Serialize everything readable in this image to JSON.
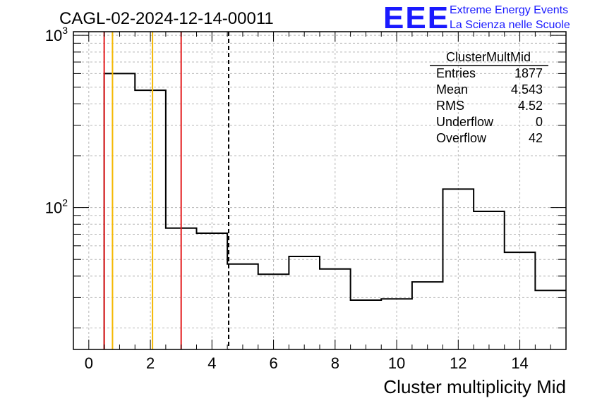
{
  "chart_data": {
    "type": "bar",
    "title": "CAGL-02-2024-12-14-00011",
    "xlabel": "Cluster multiplicity Mid",
    "ylabel": "",
    "y_scale": "log",
    "xlim": [
      -0.5,
      15.5
    ],
    "ylim": [
      15,
      1050
    ],
    "grid": true,
    "x_ticks": [
      "0",
      "2",
      "4",
      "6",
      "8",
      "10",
      "12",
      "14"
    ],
    "y_ticks": [
      {
        "base": "10",
        "exp": "2",
        "value": 100
      },
      {
        "base": "10",
        "exp": "3",
        "value": 1000
      }
    ],
    "bins": {
      "edges": [
        0.5,
        1.5,
        2.5,
        3.5,
        4.5,
        5.5,
        6.5,
        7.5,
        8.5,
        9.5,
        10.5,
        11.5,
        12.5,
        13.5,
        14.5,
        15.5
      ],
      "values": [
        600,
        480,
        76,
        71,
        47,
        41,
        52,
        44,
        29,
        29.5,
        37,
        128,
        95,
        55,
        33
      ]
    },
    "markers": [
      {
        "x": 0.5,
        "color": "#e41a1c",
        "style": "solid"
      },
      {
        "x": 0.77,
        "color": "#f5b800",
        "style": "solid"
      },
      {
        "x": 2.07,
        "color": "#f5b800",
        "style": "solid"
      },
      {
        "x": 3.0,
        "color": "#e41a1c",
        "style": "solid"
      },
      {
        "x": 4.543,
        "color": "#000000",
        "style": "dashed"
      }
    ],
    "stats_box": {
      "name": "ClusterMultMid",
      "rows": [
        {
          "label": "Entries",
          "value": "1877"
        },
        {
          "label": "Mean",
          "value": "4.543"
        },
        {
          "label": "RMS",
          "value": "4.52"
        },
        {
          "label": "Underflow",
          "value": "0"
        },
        {
          "label": "Overflow",
          "value": "42"
        }
      ]
    }
  },
  "logo": {
    "text": "EEE",
    "line1": "Extreme Energy Events",
    "line2": "La Scienza nelle Scuole",
    "color": "#1a1aff"
  }
}
